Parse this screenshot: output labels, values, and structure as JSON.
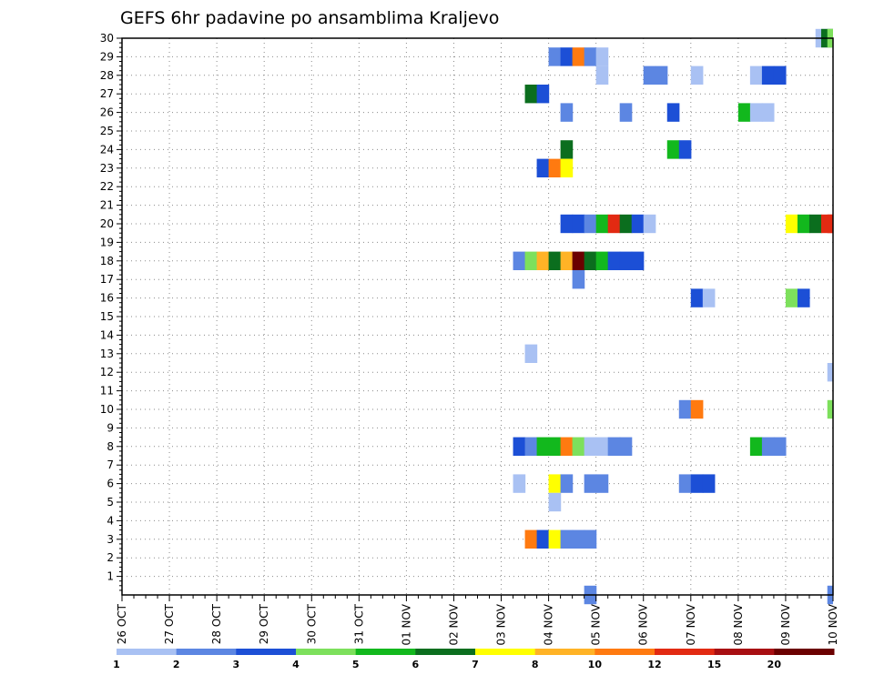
{
  "chart_data": {
    "type": "heatmap",
    "title": "GEFS 6hr padavine po ansamblima Kraljevo",
    "x_tick_labels": [
      "26 OCT",
      "27 OCT",
      "28 OCT",
      "29 OCT",
      "30 OCT",
      "31 OCT",
      "01 NOV",
      "02 NOV",
      "03 NOV",
      "04 NOV",
      "05 NOV",
      "06 NOV",
      "07 NOV",
      "08 NOV",
      "09 NOV",
      "10 NOV"
    ],
    "y_tick_labels": [
      "1",
      "2",
      "3",
      "4",
      "5",
      "6",
      "7",
      "8",
      "9",
      "10",
      "11",
      "12",
      "13",
      "14",
      "15",
      "16",
      "17",
      "18",
      "19",
      "20",
      "21",
      "22",
      "23",
      "24",
      "25",
      "26",
      "27",
      "28",
      "29",
      "30"
    ],
    "x_range": [
      0,
      15
    ],
    "y_range": [
      0,
      30
    ],
    "grid": true,
    "colorbar": {
      "levels": [
        "1",
        "2",
        "3",
        "4",
        "5",
        "6",
        "7",
        "8",
        "10",
        "12",
        "15",
        "20"
      ],
      "colors": [
        "#a9c1f3",
        "#5c86e2",
        "#1c4fd6",
        "#7de05c",
        "#12b81d",
        "#0b6e1e",
        "#ffff00",
        "#ffb326",
        "#ff7a10",
        "#e22a12",
        "#a80f12",
        "#6b0000"
      ]
    },
    "cells": [
      {
        "member": 30,
        "t": [
          [
            14.63,
            0
          ]
        ]
      },
      {
        "member": 30,
        "t": [
          [
            14.75,
            5
          ],
          [
            14.88,
            3
          ]
        ]
      },
      {
        "member": 29,
        "t": [
          [
            9.0,
            1
          ],
          [
            9.25,
            2
          ],
          [
            9.5,
            8
          ],
          [
            9.75,
            1
          ],
          [
            10.0,
            0
          ]
        ]
      },
      {
        "member": 28,
        "t": [
          [
            10.0,
            0
          ],
          [
            11.0,
            1
          ],
          [
            11.25,
            1
          ],
          [
            12.0,
            0
          ],
          [
            13.25,
            0
          ],
          [
            13.5,
            2
          ],
          [
            13.75,
            2
          ]
        ]
      },
      {
        "member": 27,
        "t": [
          [
            8.5,
            5
          ],
          [
            8.75,
            2
          ]
        ]
      },
      {
        "member": 26,
        "t": [
          [
            9.25,
            1
          ],
          [
            10.5,
            1
          ],
          [
            11.5,
            2
          ],
          [
            13.0,
            4
          ],
          [
            13.25,
            0
          ],
          [
            13.5,
            0
          ]
        ]
      },
      {
        "member": 24,
        "t": [
          [
            9.25,
            5
          ],
          [
            11.5,
            4
          ],
          [
            11.75,
            2
          ]
        ]
      },
      {
        "member": 23,
        "t": [
          [
            8.75,
            2
          ],
          [
            9.0,
            8
          ],
          [
            9.25,
            6
          ]
        ]
      },
      {
        "member": 20,
        "t": [
          [
            9.25,
            2
          ],
          [
            9.5,
            2
          ],
          [
            9.75,
            1
          ],
          [
            10.0,
            4
          ],
          [
            10.25,
            9
          ],
          [
            10.5,
            5
          ],
          [
            10.75,
            2
          ],
          [
            11.0,
            0
          ],
          [
            14.0,
            6
          ],
          [
            14.25,
            4
          ],
          [
            14.5,
            5
          ],
          [
            14.75,
            9
          ],
          [
            14.88,
            9
          ]
        ]
      },
      {
        "member": 18,
        "t": [
          [
            8.25,
            1
          ],
          [
            8.5,
            3
          ],
          [
            8.75,
            7
          ],
          [
            9.0,
            5
          ],
          [
            9.25,
            7
          ],
          [
            9.5,
            11
          ],
          [
            9.75,
            5
          ],
          [
            10.0,
            4
          ],
          [
            10.25,
            2
          ],
          [
            10.5,
            2
          ],
          [
            10.75,
            2
          ]
        ]
      },
      {
        "member": 17,
        "t": [
          [
            9.5,
            1
          ]
        ]
      },
      {
        "member": 16,
        "t": [
          [
            12.0,
            2
          ],
          [
            12.25,
            0
          ],
          [
            14.0,
            3
          ],
          [
            14.25,
            2
          ]
        ]
      },
      {
        "member": 13,
        "t": [
          [
            8.5,
            0
          ]
        ]
      },
      {
        "member": 12,
        "t": [
          [
            14.88,
            0
          ]
        ]
      },
      {
        "member": 10,
        "t": [
          [
            11.75,
            1
          ],
          [
            12.0,
            8
          ],
          [
            14.88,
            3
          ]
        ]
      },
      {
        "member": 8,
        "t": [
          [
            8.25,
            2
          ],
          [
            8.5,
            1
          ],
          [
            8.75,
            4
          ],
          [
            9.0,
            4
          ],
          [
            9.25,
            8
          ],
          [
            9.5,
            3
          ],
          [
            9.75,
            0
          ],
          [
            10.0,
            0
          ],
          [
            10.25,
            1
          ],
          [
            10.5,
            1
          ],
          [
            13.25,
            4
          ],
          [
            13.5,
            1
          ],
          [
            13.75,
            1
          ]
        ]
      },
      {
        "member": 6,
        "t": [
          [
            8.25,
            0
          ],
          [
            9.0,
            6
          ],
          [
            9.25,
            1
          ],
          [
            9.75,
            1
          ],
          [
            10.0,
            1
          ],
          [
            11.75,
            1
          ],
          [
            12.0,
            2
          ],
          [
            12.25,
            2
          ]
        ]
      },
      {
        "member": 5,
        "t": [
          [
            9.0,
            0
          ]
        ]
      },
      {
        "member": 3,
        "t": [
          [
            8.5,
            8
          ],
          [
            8.75,
            2
          ],
          [
            9.0,
            6
          ],
          [
            9.25,
            1
          ],
          [
            9.5,
            1
          ],
          [
            9.75,
            1
          ]
        ]
      },
      {
        "member": 0,
        "t": [
          [
            9.75,
            1
          ],
          [
            14.88,
            1
          ]
        ]
      }
    ]
  }
}
